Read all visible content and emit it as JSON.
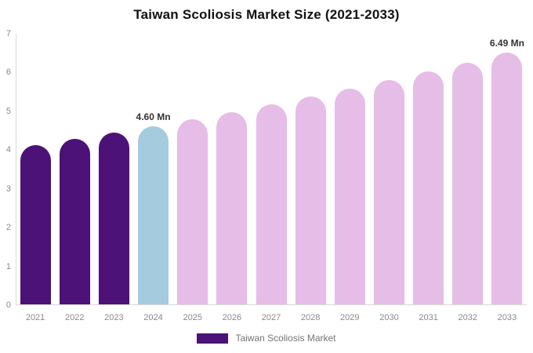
{
  "chart_data": {
    "type": "bar",
    "title": "Taiwan Scoliosis Market Size (2021-2033)",
    "categories": [
      "2021",
      "2022",
      "2023",
      "2024",
      "2025",
      "2026",
      "2027",
      "2028",
      "2029",
      "2030",
      "2031",
      "2032",
      "2033"
    ],
    "values": [
      4.1,
      4.26,
      4.43,
      4.6,
      4.78,
      4.96,
      5.16,
      5.36,
      5.57,
      5.78,
      6.0,
      6.24,
      6.49
    ],
    "unit": "Mn",
    "point_labels": [
      "",
      "",
      "",
      "4.60 Mn",
      "",
      "",
      "",
      "",
      "",
      "",
      "",
      "",
      "6.49 Mn"
    ],
    "segments": [
      "historical",
      "historical",
      "historical",
      "current",
      "forecast",
      "forecast",
      "forecast",
      "forecast",
      "forecast",
      "forecast",
      "forecast",
      "forecast",
      "forecast"
    ],
    "colors": {
      "historical": "#4C1277",
      "current": "#A5CBDF",
      "forecast": "#E5BDE7"
    },
    "xlabel": "",
    "ylabel": "",
    "ylim": [
      0,
      7
    ],
    "yticks": [
      0,
      1,
      2,
      3,
      4,
      5,
      6,
      7
    ],
    "grid": false,
    "legend": {
      "position": "bottom",
      "items": [
        {
          "label": "Taiwan Scoliosis Market",
          "color": "#4C1277"
        }
      ]
    },
    "axis_color": "#d9d9d9",
    "tick_text_color": "#8a8a8a",
    "data_label_color": "#333333",
    "background": "#ffffff"
  }
}
